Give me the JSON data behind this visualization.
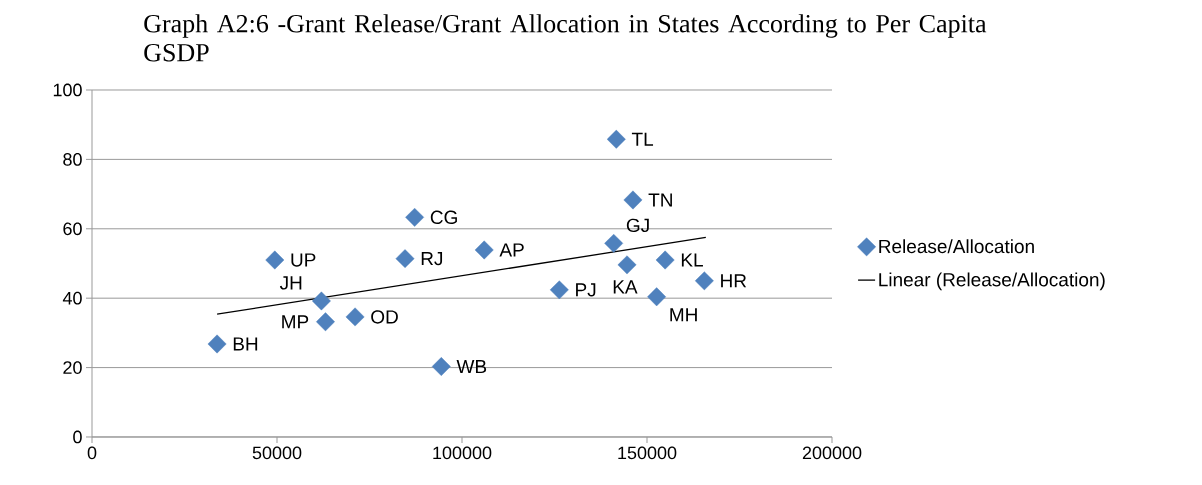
{
  "chart_data": {
    "type": "scatter",
    "title": "Graph A2:6 -Grant Release/Grant Allocation in States According to Per Capita GSDP",
    "xlim": [
      0,
      200000
    ],
    "xticks": [
      0,
      50000,
      100000,
      150000,
      200000
    ],
    "ylim": [
      0,
      100
    ],
    "yticks": [
      0,
      20,
      40,
      60,
      80,
      100
    ],
    "grid": "y",
    "legend": "right",
    "series": [
      {
        "name": "Release/Allocation",
        "type": "scatter",
        "marker": "diamond",
        "color": "#4f81bd",
        "x": [
          33800,
          49400,
          62000,
          63100,
          71100,
          84600,
          87200,
          94400,
          106000,
          126300,
          141000,
          141700,
          146200,
          144600,
          154900,
          152600,
          165500
        ],
        "values": [
          26.8,
          51.0,
          39.2,
          33.2,
          34.6,
          51.4,
          63.3,
          20.3,
          53.9,
          42.4,
          55.8,
          85.8,
          68.3,
          49.6,
          51.0,
          40.4,
          45.0
        ]
      },
      {
        "name": "Linear (Release/Allocation)",
        "type": "line",
        "color": "#000000",
        "line_style": "solid",
        "x": [
          33800,
          165900
        ],
        "values": [
          35.4,
          57.5
        ]
      }
    ],
    "annotations": [
      {
        "text": "BH",
        "x": 33800,
        "y": 26.8
      },
      {
        "text": "UP",
        "x": 49400,
        "y": 51.0
      },
      {
        "text": "JH",
        "x": 62000,
        "y": 39.2
      },
      {
        "text": "MP",
        "x": 63100,
        "y": 33.2
      },
      {
        "text": "OD",
        "x": 71100,
        "y": 34.6
      },
      {
        "text": "RJ",
        "x": 84600,
        "y": 51.4
      },
      {
        "text": "CG",
        "x": 87200,
        "y": 63.3
      },
      {
        "text": "WB",
        "x": 94400,
        "y": 20.3
      },
      {
        "text": "AP",
        "x": 106000,
        "y": 53.9
      },
      {
        "text": "PJ",
        "x": 126300,
        "y": 42.4
      },
      {
        "text": "GJ",
        "x": 141000,
        "y": 55.8
      },
      {
        "text": "TL",
        "x": 141700,
        "y": 85.8
      },
      {
        "text": "TN",
        "x": 146200,
        "y": 68.3
      },
      {
        "text": "KA",
        "x": 144600,
        "y": 49.6
      },
      {
        "text": "KL",
        "x": 154900,
        "y": 51.0
      },
      {
        "text": "MH",
        "x": 152600,
        "y": 40.4
      },
      {
        "text": "HR",
        "x": 165500,
        "y": 45.0
      }
    ]
  }
}
